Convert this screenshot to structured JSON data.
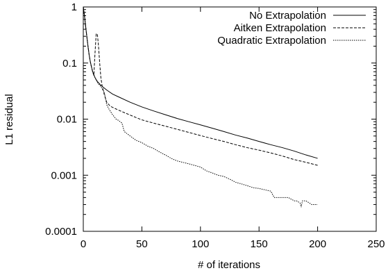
{
  "chart_data": {
    "type": "line",
    "title": "",
    "xlabel": "# of iterations",
    "ylabel": "L1 residual",
    "xlim": [
      0,
      250
    ],
    "ylim": [
      0.0001,
      1
    ],
    "yscale": "log",
    "grid": false,
    "legend_position": "top-right",
    "x_ticks": [
      {
        "value": 0,
        "label": "0"
      },
      {
        "value": 50,
        "label": "50"
      },
      {
        "value": 100,
        "label": "100"
      },
      {
        "value": 150,
        "label": "150"
      },
      {
        "value": 200,
        "label": "200"
      },
      {
        "value": 250,
        "label": "250"
      }
    ],
    "y_ticks": [
      {
        "value": 1,
        "label": "1"
      },
      {
        "value": 0.1,
        "label": "0.1"
      },
      {
        "value": 0.01,
        "label": "0.01"
      },
      {
        "value": 0.001,
        "label": "0.001"
      },
      {
        "value": 0.0001,
        "label": "0.0001"
      }
    ],
    "series": [
      {
        "name": "No Extrapolation",
        "style": "solid",
        "points": [
          [
            0,
            1.0
          ],
          [
            1,
            0.7
          ],
          [
            2,
            0.45
          ],
          [
            3,
            0.3
          ],
          [
            4,
            0.2
          ],
          [
            5,
            0.14
          ],
          [
            6,
            0.105
          ],
          [
            7,
            0.085
          ],
          [
            8,
            0.07
          ],
          [
            10,
            0.055
          ],
          [
            12,
            0.047
          ],
          [
            15,
            0.04
          ],
          [
            20,
            0.033
          ],
          [
            25,
            0.028
          ],
          [
            30,
            0.025
          ],
          [
            40,
            0.02
          ],
          [
            50,
            0.0165
          ],
          [
            60,
            0.014
          ],
          [
            70,
            0.012
          ],
          [
            80,
            0.0103
          ],
          [
            90,
            0.009
          ],
          [
            100,
            0.0079
          ],
          [
            110,
            0.0069
          ],
          [
            120,
            0.006
          ],
          [
            130,
            0.0052
          ],
          [
            140,
            0.0046
          ],
          [
            150,
            0.004
          ],
          [
            160,
            0.0035
          ],
          [
            170,
            0.0031
          ],
          [
            180,
            0.0027
          ],
          [
            190,
            0.0023
          ],
          [
            200,
            0.002
          ]
        ]
      },
      {
        "name": "Aitken Extrapolation",
        "style": "dashed",
        "points": [
          [
            0,
            1.0
          ],
          [
            1,
            0.7
          ],
          [
            2,
            0.45
          ],
          [
            3,
            0.3
          ],
          [
            4,
            0.2
          ],
          [
            5,
            0.14
          ],
          [
            6,
            0.105
          ],
          [
            7,
            0.085
          ],
          [
            8,
            0.07
          ],
          [
            9,
            0.06
          ],
          [
            10,
            0.15
          ],
          [
            11,
            0.33
          ],
          [
            12,
            0.33
          ],
          [
            13,
            0.2
          ],
          [
            14,
            0.1
          ],
          [
            15,
            0.055
          ],
          [
            16,
            0.04
          ],
          [
            18,
            0.027
          ],
          [
            20,
            0.02
          ],
          [
            23,
            0.017
          ],
          [
            27,
            0.0155
          ],
          [
            30,
            0.0145
          ],
          [
            40,
            0.0118
          ],
          [
            50,
            0.0097
          ],
          [
            60,
            0.0085
          ],
          [
            70,
            0.0075
          ],
          [
            80,
            0.0066
          ],
          [
            90,
            0.0058
          ],
          [
            100,
            0.0051
          ],
          [
            110,
            0.0045
          ],
          [
            120,
            0.004
          ],
          [
            130,
            0.0035
          ],
          [
            140,
            0.0031
          ],
          [
            150,
            0.0028
          ],
          [
            160,
            0.0025
          ],
          [
            170,
            0.0022
          ],
          [
            180,
            0.0019
          ],
          [
            190,
            0.0017
          ],
          [
            200,
            0.0015
          ]
        ]
      },
      {
        "name": "Quadratic Extrapolation",
        "style": "dotted",
        "points": [
          [
            0,
            1.0
          ],
          [
            1,
            0.7
          ],
          [
            2,
            0.45
          ],
          [
            3,
            0.3
          ],
          [
            4,
            0.2
          ],
          [
            5,
            0.14
          ],
          [
            6,
            0.105
          ],
          [
            7,
            0.085
          ],
          [
            8,
            0.07
          ],
          [
            10,
            0.055
          ],
          [
            12,
            0.045
          ],
          [
            15,
            0.038
          ],
          [
            18,
            0.03
          ],
          [
            20,
            0.018
          ],
          [
            22,
            0.015
          ],
          [
            25,
            0.012
          ],
          [
            28,
            0.01
          ],
          [
            30,
            0.0095
          ],
          [
            33,
            0.0085
          ],
          [
            35,
            0.006
          ],
          [
            40,
            0.005
          ],
          [
            45,
            0.0042
          ],
          [
            50,
            0.0038
          ],
          [
            55,
            0.0033
          ],
          [
            60,
            0.003
          ],
          [
            65,
            0.0026
          ],
          [
            70,
            0.0023
          ],
          [
            75,
            0.002
          ],
          [
            80,
            0.0018
          ],
          [
            90,
            0.0016
          ],
          [
            100,
            0.0014
          ],
          [
            105,
            0.0012
          ],
          [
            110,
            0.0011
          ],
          [
            115,
            0.001
          ],
          [
            120,
            0.00095
          ],
          [
            125,
            0.00085
          ],
          [
            130,
            0.00075
          ],
          [
            135,
            0.0007
          ],
          [
            140,
            0.00065
          ],
          [
            145,
            0.0006
          ],
          [
            150,
            0.00058
          ],
          [
            155,
            0.00055
          ],
          [
            160,
            0.00052
          ],
          [
            163,
            0.0004
          ],
          [
            170,
            0.0004
          ],
          [
            175,
            0.0004
          ],
          [
            180,
            0.00035
          ],
          [
            182,
            0.00035
          ],
          [
            185,
            0.00032
          ],
          [
            186,
            0.00027
          ],
          [
            187,
            0.00035
          ],
          [
            190,
            0.00035
          ],
          [
            195,
            0.0003
          ],
          [
            200,
            0.0003
          ]
        ]
      }
    ]
  }
}
